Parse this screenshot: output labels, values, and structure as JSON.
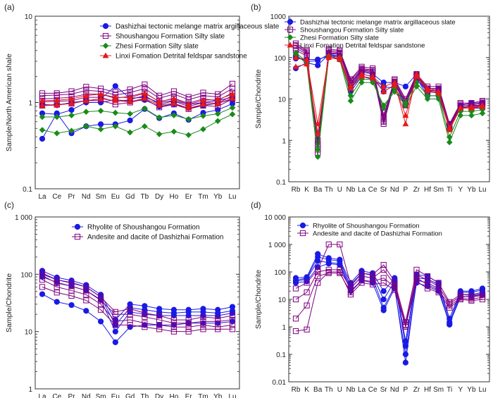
{
  "figure": {
    "panel_labels": [
      "(a)",
      "(b)",
      "(c)",
      "(d)"
    ]
  },
  "chart_data": [
    {
      "panel": "(a)",
      "type": "line",
      "ylabel": "Sample/North American shale",
      "yscale": "log",
      "ylim": [
        0.1,
        10
      ],
      "yticks": [
        "0.1",
        "1",
        "10"
      ],
      "categories": [
        "La",
        "Ce",
        "Pr",
        "Nd",
        "Sm",
        "Eu",
        "Gd",
        "Tb",
        "Dy",
        "Ho",
        "Er",
        "Tm",
        "Yb",
        "Lu"
      ],
      "legend_position": "top-right",
      "series": [
        {
          "name": "Dashizhai tectonic melange matrix argillaceous slate",
          "color": "#1a1ae6",
          "marker": "circle",
          "lines": [
            [
              0.38,
              0.75,
              0.44,
              0.53,
              0.56,
              0.56,
              0.62,
              0.84,
              0.66,
              0.75,
              0.63,
              0.76,
              0.82,
              0.97
            ],
            [
              0.75,
              0.73,
              0.82,
              1.0,
              1.0,
              1.08,
              1.03,
              1.07,
              0.9,
              0.96,
              0.86,
              0.92,
              0.98,
              1.09
            ],
            [
              0.95,
              0.93,
              1.0,
              1.05,
              1.1,
              1.55,
              1.12,
              1.15,
              1.0,
              1.05,
              0.95,
              1.0,
              1.05,
              1.15
            ]
          ]
        },
        {
          "name": "Shoushangou Formation Silty slate",
          "color": "#800080",
          "marker": "square",
          "lines": [
            [
              1.28,
              1.28,
              1.35,
              1.52,
              1.45,
              1.32,
              1.42,
              1.62,
              1.2,
              1.35,
              1.16,
              1.3,
              1.25,
              1.65
            ],
            [
              1.2,
              1.22,
              1.25,
              1.38,
              1.35,
              1.22,
              1.3,
              1.45,
              1.12,
              1.25,
              1.08,
              1.2,
              1.16,
              1.45
            ],
            [
              1.1,
              1.12,
              1.15,
              1.25,
              1.25,
              1.12,
              1.18,
              1.3,
              1.02,
              1.12,
              0.98,
              1.1,
              1.05,
              1.3
            ],
            [
              1.02,
              1.03,
              1.05,
              1.15,
              1.15,
              1.02,
              1.08,
              1.2,
              0.95,
              1.04,
              0.9,
              1.0,
              0.98,
              1.2
            ],
            [
              0.92,
              0.95,
              0.97,
              1.05,
              1.05,
              0.95,
              1.0,
              1.1,
              0.88,
              0.95,
              0.84,
              0.92,
              0.9,
              1.1
            ]
          ]
        },
        {
          "name": "Zhesi Formation  Silty slate",
          "color": "#1a8a1a",
          "marker": "diamond",
          "lines": [
            [
              0.48,
              0.44,
              0.47,
              0.53,
              0.49,
              0.53,
              0.45,
              0.53,
              0.43,
              0.46,
              0.42,
              0.49,
              0.61,
              0.73
            ],
            [
              0.68,
              0.68,
              0.71,
              0.78,
              0.8,
              0.76,
              0.74,
              0.85,
              0.67,
              0.71,
              0.64,
              0.7,
              0.74,
              0.87
            ]
          ]
        },
        {
          "name": "Linxi Fomation Detrital feldspar sandstone",
          "color": "#e61a1a",
          "marker": "triangle",
          "lines": [
            [
              1.05,
              1.06,
              1.1,
              1.2,
              1.25,
              1.15,
              1.14,
              1.28,
              1.03,
              1.1,
              0.95,
              1.06,
              1.08,
              1.25
            ],
            [
              0.92,
              0.93,
              0.98,
              1.05,
              1.1,
              1.05,
              1.02,
              1.12,
              0.93,
              0.98,
              0.86,
              0.95,
              0.97,
              1.12
            ]
          ]
        }
      ]
    },
    {
      "panel": "(b)",
      "type": "line",
      "ylabel": "Sample/Chondrite",
      "yscale": "log",
      "ylim": [
        0.1,
        1000
      ],
      "yticks": [
        "0.1",
        "1",
        "10",
        "100",
        "1000"
      ],
      "categories": [
        "Rb",
        "K",
        "Ba",
        "Th",
        "U",
        "Nb",
        "La",
        "Ce",
        "Sr",
        "Nd",
        "P",
        "Zr",
        "Hf",
        "Sm",
        "Ti",
        "Y",
        "Yb",
        "Lu"
      ],
      "legend_position": "top-right",
      "series": [
        {
          "name": "Dashizhai tectonic melange matrix argillaceous slate",
          "color": "#1a1ae6",
          "marker": "circle",
          "lines": [
            [
              110,
              80,
              85,
              120,
              100,
              18,
              40,
              35,
              15,
              22,
              8,
              30,
              15,
              14,
              2.5,
              6,
              6,
              6
            ],
            [
              55,
              75,
              65,
              120,
              110,
              15,
              35,
              30,
              20,
              18,
              7,
              32,
              12,
              12,
              2,
              6,
              7,
              7
            ],
            [
              95,
              90,
              90,
              110,
              90,
              20,
              45,
              40,
              25,
              25,
              20,
              40,
              18,
              18,
              2.3,
              7,
              8,
              8
            ]
          ]
        },
        {
          "name": "Shoushangou Formation Silty slate",
          "color": "#800080",
          "marker": "square",
          "lines": [
            [
              220,
              150,
              0.5,
              160,
              150,
              30,
              60,
              55,
              4,
              30,
              10,
              40,
              20,
              20,
              2.5,
              8,
              8,
              9
            ],
            [
              200,
              140,
              0.6,
              150,
              140,
              28,
              55,
              50,
              3.5,
              28,
              9,
              38,
              18,
              18,
              2.3,
              7.5,
              7.5,
              8.5
            ],
            [
              190,
              130,
              0.7,
              140,
              130,
              25,
              52,
              48,
              3,
              26,
              8,
              36,
              17,
              17,
              2.2,
              7,
              7,
              8
            ],
            [
              170,
              120,
              0.8,
              130,
              125,
              24,
              50,
              45,
              2.5,
              25,
              8,
              35,
              16,
              16,
              2.1,
              6.5,
              6.5,
              7.5
            ],
            [
              150,
              110,
              1.0,
              125,
              120,
              22,
              48,
              42,
              2.8,
              24,
              7,
              34,
              15,
              15,
              2.0,
              6,
              6,
              7
            ]
          ]
        },
        {
          "name": "Zhesi Formation  Silty slate",
          "color": "#1a8a1a",
          "marker": "diamond",
          "lines": [
            [
              120,
              70,
              0.4,
              100,
              90,
              9,
              25,
              25,
              7,
              15,
              7,
              20,
              10,
              10,
              0.9,
              4,
              4,
              4.5
            ],
            [
              130,
              80,
              0.6,
              110,
              100,
              12,
              30,
              30,
              6,
              18,
              8,
              25,
              12,
              12,
              1.2,
              5,
              5,
              5.5
            ]
          ]
        },
        {
          "name": "Linxi Fomation Detrital feldspar sandstone",
          "color": "#e61a1a",
          "marker": "triangle",
          "lines": [
            [
              100,
              90,
              2.5,
              110,
              100,
              20,
              40,
              35,
              20,
              25,
              2.5,
              40,
              18,
              15,
              2,
              6,
              6.5,
              7
            ],
            [
              60,
              70,
              1.5,
              100,
              90,
              18,
              35,
              32,
              15,
              22,
              4,
              35,
              16,
              14,
              1.8,
              6,
              6,
              6.5
            ]
          ]
        }
      ]
    },
    {
      "panel": "(c)",
      "type": "line",
      "ylabel": "Sample/Chondrite",
      "yscale": "log",
      "ylim": [
        1,
        1000
      ],
      "yticks": [
        "1",
        "10",
        "100",
        "1 000"
      ],
      "categories": [
        "La",
        "Ce",
        "Pr",
        "Nd",
        "Sm",
        "Eu",
        "Gd",
        "Tb",
        "Dy",
        "Ho",
        "Er",
        "Tm",
        "Yb",
        "Lu"
      ],
      "legend_position": "top-right",
      "series": [
        {
          "name": "Rhyolite of Shoushangou Formation",
          "color": "#1a1ae6",
          "marker": "circle",
          "lines": [
            [
              115,
              88,
              78,
              65,
              44,
              16,
              30,
              28,
              25,
              24,
              24,
              25,
              24,
              27
            ],
            [
              100,
              80,
              70,
              60,
              40,
              13,
              26,
              24,
              22,
              21,
              22,
              22,
              21,
              23
            ],
            [
              90,
              72,
              62,
              52,
              36,
              10,
              22,
              20,
              19,
              19,
              19,
              19,
              19,
              21
            ],
            [
              45,
              33,
              29,
              23,
              15,
              6.5,
              12,
              13,
              13,
              13,
              14,
              14,
              14,
              15
            ]
          ]
        },
        {
          "name": "Andesite and dacite of Dashizhai Formation",
          "color": "#800080",
          "marker": "square",
          "lines": [
            [
              105,
              80,
              72,
              60,
              40,
              22,
              25,
              21,
              19,
              16,
              16,
              18,
              17,
              19
            ],
            [
              95,
              70,
              62,
              52,
              35,
              20,
              20,
              18,
              16,
              14,
              14,
              15,
              15,
              16
            ],
            [
              80,
              60,
              52,
              44,
              30,
              15,
              16,
              14,
              13,
              12,
              12,
              13,
              12,
              13
            ],
            [
              60,
              48,
              42,
              35,
              24,
              13,
              13,
              12,
              11,
              10,
              10,
              11,
              11,
              11
            ]
          ]
        }
      ]
    },
    {
      "panel": "(d)",
      "type": "line",
      "ylabel": "Sample/Chondrite",
      "yscale": "log",
      "ylim": [
        0.01,
        10000
      ],
      "yticks": [
        "0.01",
        "0.1",
        "1",
        "10",
        "100",
        "1 000",
        "10 000"
      ],
      "categories": [
        "Rb",
        "K",
        "Ba",
        "Th",
        "U",
        "Nb",
        "La",
        "Ce",
        "Sr",
        "Nd",
        "P",
        "Zr",
        "Hf",
        "Sm",
        "Ti",
        "Y",
        "Yb",
        "Lu"
      ],
      "legend_position": "top-left",
      "series": [
        {
          "name": "Rhyolite of Shoushangou Formation",
          "color": "#1a1ae6",
          "marker": "circle",
          "lines": [
            [
              60,
              65,
              450,
              320,
              280,
              40,
              110,
              90,
              20,
              60,
              0.3,
              80,
              70,
              40,
              2,
              20,
              20,
              25
            ],
            [
              50,
              60,
              350,
              280,
              250,
              30,
              90,
              75,
              10,
              45,
              0.2,
              60,
              55,
              35,
              1.5,
              18,
              18,
              22
            ],
            [
              45,
              55,
              250,
              220,
              200,
              25,
              70,
              60,
              5,
              30,
              0.05,
              50,
              40,
              25,
              1.2,
              15,
              15,
              18
            ],
            [
              40,
              45,
              150,
              200,
              180,
              20,
              50,
              40,
              4,
              25,
              0.1,
              40,
              30,
              20,
              1.3,
              12,
              13,
              15
            ]
          ]
        },
        {
          "name": "Andesite and dacite of Dashizhai Formation",
          "color": "#800080",
          "marker": "square",
          "lines": [
            [
              25,
              40,
              120,
              1000,
              1000,
              35,
              90,
              80,
              180,
              45,
              1.5,
              120,
              70,
              40,
              8,
              15,
              14,
              16
            ],
            [
              10,
              18,
              100,
              120,
              120,
              25,
              70,
              60,
              120,
              35,
              1.2,
              80,
              50,
              30,
              7,
              13,
              12,
              14
            ],
            [
              2,
              6,
              70,
              90,
              90,
              18,
              50,
              45,
              60,
              28,
              1.0,
              60,
              35,
              22,
              6,
              11,
              10,
              12
            ],
            [
              0.7,
              0.8,
              40,
              100,
              100,
              15,
              40,
              35,
              40,
              22,
              1.1,
              45,
              25,
              18,
              5,
              10,
              9,
              10
            ]
          ]
        }
      ]
    }
  ]
}
